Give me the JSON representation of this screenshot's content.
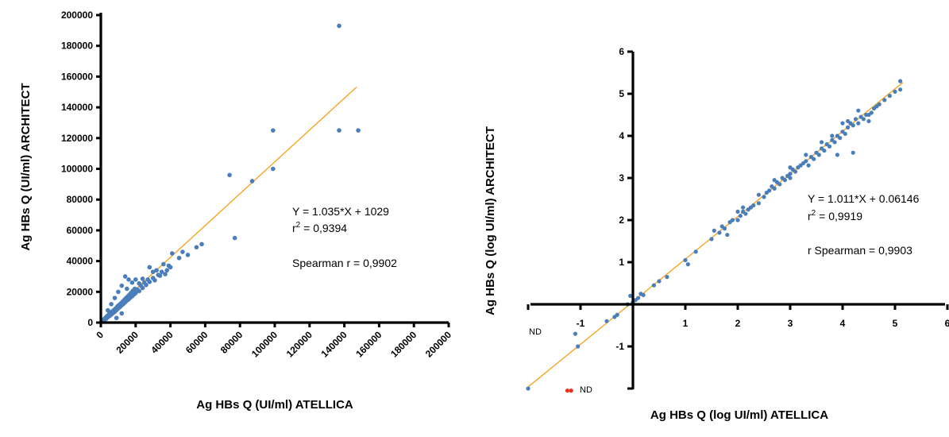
{
  "chart_data": [
    {
      "type": "scatter",
      "title": "",
      "xlabel": "Ag HBs Q (UI/ml) ATELLICA",
      "ylabel": "Ag HBs Q (UI/ml) ARCHITECT",
      "xlim": [
        0,
        200000
      ],
      "ylim": [
        0,
        200000
      ],
      "xticks": [
        "0",
        "20000",
        "40000",
        "60000",
        "80000",
        "100000",
        "120000",
        "140000",
        "160000",
        "180000",
        "200000"
      ],
      "yticks": [
        "0",
        "20000",
        "40000",
        "60000",
        "80000",
        "100000",
        "120000",
        "140000",
        "160000",
        "180000",
        "200000"
      ],
      "grid": false,
      "point_color": "#4a7ebb",
      "fit_color": "#f5a623",
      "fit": {
        "slope": 1.035,
        "intercept": 1029,
        "x_range": [
          0,
          147000
        ]
      },
      "annotations": {
        "equation": "Y = 1.035*X + 1029",
        "r2_prefix": "r",
        "r2_sup": "2",
        "r2_value": " = 0,9394",
        "spearman": "Spearman r = 0,9902"
      },
      "points": [
        [
          500,
          800
        ],
        [
          800,
          1200
        ],
        [
          1200,
          900
        ],
        [
          1500,
          2000
        ],
        [
          2000,
          1600
        ],
        [
          2500,
          3000
        ],
        [
          3000,
          2400
        ],
        [
          3500,
          4200
        ],
        [
          4000,
          3500
        ],
        [
          4500,
          5200
        ],
        [
          5000,
          4300
        ],
        [
          5500,
          6500
        ],
        [
          6000,
          5200
        ],
        [
          6500,
          7200
        ],
        [
          7000,
          6200
        ],
        [
          7500,
          8200
        ],
        [
          8000,
          7000
        ],
        [
          8500,
          9200
        ],
        [
          9000,
          8200
        ],
        [
          9500,
          10500
        ],
        [
          10000,
          9200
        ],
        [
          10500,
          11500
        ],
        [
          11000,
          10200
        ],
        [
          11500,
          12500
        ],
        [
          12000,
          11300
        ],
        [
          12500,
          13600
        ],
        [
          13000,
          12200
        ],
        [
          13500,
          14800
        ],
        [
          14000,
          13300
        ],
        [
          14500,
          16000
        ],
        [
          15000,
          14300
        ],
        [
          15500,
          17000
        ],
        [
          16000,
          15200
        ],
        [
          16500,
          18200
        ],
        [
          17000,
          16300
        ],
        [
          17500,
          19500
        ],
        [
          18000,
          17200
        ],
        [
          18500,
          20800
        ],
        [
          19000,
          18300
        ],
        [
          19500,
          22000
        ],
        [
          20000,
          19200
        ],
        [
          21000,
          21500
        ],
        [
          22000,
          20500
        ],
        [
          23000,
          24000
        ],
        [
          24000,
          22500
        ],
        [
          25000,
          26000
        ],
        [
          26000,
          24500
        ],
        [
          27000,
          28000
        ],
        [
          28000,
          26500
        ],
        [
          30000,
          29000
        ],
        [
          31000,
          27500
        ],
        [
          33000,
          31000
        ],
        [
          35000,
          33000
        ],
        [
          37000,
          31500
        ],
        [
          39000,
          37000
        ],
        [
          40000,
          36000
        ],
        [
          41000,
          45000
        ],
        [
          45000,
          42000
        ],
        [
          47000,
          46000
        ],
        [
          50000,
          44000
        ],
        [
          55000,
          49000
        ],
        [
          58000,
          51000
        ],
        [
          4000,
          8000
        ],
        [
          6000,
          12000
        ],
        [
          8000,
          16000
        ],
        [
          10000,
          20000
        ],
        [
          12000,
          24000
        ],
        [
          14000,
          30000
        ],
        [
          16000,
          28000
        ],
        [
          18000,
          26000
        ],
        [
          20000,
          28000
        ],
        [
          15000,
          22000
        ],
        [
          28000,
          36000
        ],
        [
          32000,
          34000
        ],
        [
          36000,
          38000
        ],
        [
          24000,
          28500
        ],
        [
          22000,
          25500
        ],
        [
          9000,
          3000
        ],
        [
          12000,
          6000
        ],
        [
          30000,
          33000
        ],
        [
          34000,
          30500
        ],
        [
          38000,
          34000
        ],
        [
          74000,
          96000
        ],
        [
          77000,
          55000
        ],
        [
          87000,
          92000
        ],
        [
          99000,
          125000
        ],
        [
          99000,
          100000
        ],
        [
          137000,
          193000
        ],
        [
          137000,
          125000
        ],
        [
          148000,
          125000
        ]
      ]
    },
    {
      "type": "scatter",
      "title": "",
      "xlabel": "Ag HBs Q (log UI/ml) ATELLICA",
      "ylabel": "Ag HBs Q (log UI/ml) ARCHITECT",
      "xlim": [
        -2,
        6
      ],
      "ylim": [
        -2,
        6
      ],
      "xticks": [
        "-1",
        "1",
        "2",
        "3",
        "4",
        "5",
        "6"
      ],
      "yticks": [
        "-1",
        "1",
        "2",
        "3",
        "4",
        "5",
        "6"
      ],
      "grid": false,
      "point_color": "#4a7ebb",
      "fit_color": "#f5a623",
      "nd_color": "#e8341c",
      "fit": {
        "slope": 1.011,
        "intercept": 0.06146,
        "x_range": [
          -2,
          5.15
        ]
      },
      "nd_x_label": "ND",
      "nd_y_label": "ND",
      "nd_points": [
        [
          -1.25,
          -2.05
        ],
        [
          -1.18,
          -2.05
        ]
      ],
      "annotations": {
        "equation": "Y = 1.011*X + 0.06146",
        "r2_prefix": "r",
        "r2_sup": "2",
        "r2_value": " = 0,9919",
        "spearman": "r Spearman = 0,9903"
      },
      "points": [
        [
          -2.0,
          -2.0
        ],
        [
          -1.05,
          -1.0
        ],
        [
          -1.1,
          -0.7
        ],
        [
          -0.5,
          -0.4
        ],
        [
          -0.35,
          -0.3
        ],
        [
          -0.3,
          -0.25
        ],
        [
          -0.1,
          0.0
        ],
        [
          -0.05,
          0.2
        ],
        [
          0.0,
          0.05
        ],
        [
          0.05,
          0.1
        ],
        [
          0.1,
          0.15
        ],
        [
          0.15,
          0.25
        ],
        [
          0.2,
          0.22
        ],
        [
          0.4,
          0.45
        ],
        [
          0.5,
          0.55
        ],
        [
          0.65,
          0.65
        ],
        [
          1.0,
          1.05
        ],
        [
          1.05,
          0.95
        ],
        [
          1.2,
          1.25
        ],
        [
          1.5,
          1.55
        ],
        [
          1.55,
          1.75
        ],
        [
          1.65,
          1.7
        ],
        [
          1.75,
          1.8
        ],
        [
          1.8,
          1.65
        ],
        [
          1.85,
          1.95
        ],
        [
          1.9,
          2.0
        ],
        [
          2.0,
          2.0
        ],
        [
          2.0,
          2.2
        ],
        [
          2.05,
          2.1
        ],
        [
          2.1,
          2.3
        ],
        [
          2.15,
          2.15
        ],
        [
          2.2,
          2.25
        ],
        [
          2.25,
          2.3
        ],
        [
          2.3,
          2.35
        ],
        [
          2.4,
          2.4
        ],
        [
          2.5,
          2.55
        ],
        [
          2.55,
          2.65
        ],
        [
          2.6,
          2.7
        ],
        [
          2.65,
          2.8
        ],
        [
          2.7,
          2.75
        ],
        [
          2.75,
          2.9
        ],
        [
          2.8,
          2.85
        ],
        [
          2.85,
          3.0
        ],
        [
          2.9,
          2.95
        ],
        [
          2.95,
          3.05
        ],
        [
          3.0,
          3.1
        ],
        [
          3.0,
          3.0
        ],
        [
          3.05,
          3.2
        ],
        [
          3.1,
          3.15
        ],
        [
          3.15,
          3.25
        ],
        [
          3.2,
          3.3
        ],
        [
          3.25,
          3.35
        ],
        [
          3.3,
          3.4
        ],
        [
          3.35,
          3.3
        ],
        [
          3.4,
          3.5
        ],
        [
          3.45,
          3.45
        ],
        [
          3.5,
          3.6
        ],
        [
          3.55,
          3.55
        ],
        [
          3.6,
          3.7
        ],
        [
          3.65,
          3.65
        ],
        [
          3.7,
          3.8
        ],
        [
          3.75,
          3.75
        ],
        [
          3.8,
          3.9
        ],
        [
          3.85,
          3.85
        ],
        [
          3.9,
          4.0
        ],
        [
          3.95,
          3.95
        ],
        [
          4.0,
          4.1
        ],
        [
          4.05,
          4.05
        ],
        [
          4.1,
          4.2
        ],
        [
          4.1,
          4.35
        ],
        [
          4.15,
          4.3
        ],
        [
          4.2,
          4.25
        ],
        [
          4.25,
          4.4
        ],
        [
          4.3,
          4.3
        ],
        [
          4.35,
          4.45
        ],
        [
          4.4,
          4.4
        ],
        [
          4.45,
          4.5
        ],
        [
          4.5,
          4.5
        ],
        [
          4.55,
          4.55
        ],
        [
          4.6,
          4.65
        ],
        [
          4.65,
          4.7
        ],
        [
          4.7,
          4.75
        ],
        [
          4.8,
          4.85
        ],
        [
          4.9,
          4.95
        ],
        [
          5.0,
          5.05
        ],
        [
          5.1,
          5.1
        ],
        [
          5.1,
          5.3
        ],
        [
          4.2,
          3.6
        ],
        [
          3.9,
          3.55
        ],
        [
          4.0,
          4.3
        ],
        [
          3.6,
          3.85
        ],
        [
          3.3,
          3.55
        ],
        [
          3.0,
          3.25
        ],
        [
          2.7,
          2.95
        ],
        [
          2.4,
          2.6
        ],
        [
          2.1,
          2.2
        ],
        [
          1.7,
          1.85
        ],
        [
          3.8,
          4.0
        ],
        [
          4.3,
          4.6
        ],
        [
          4.5,
          4.35
        ]
      ]
    }
  ]
}
